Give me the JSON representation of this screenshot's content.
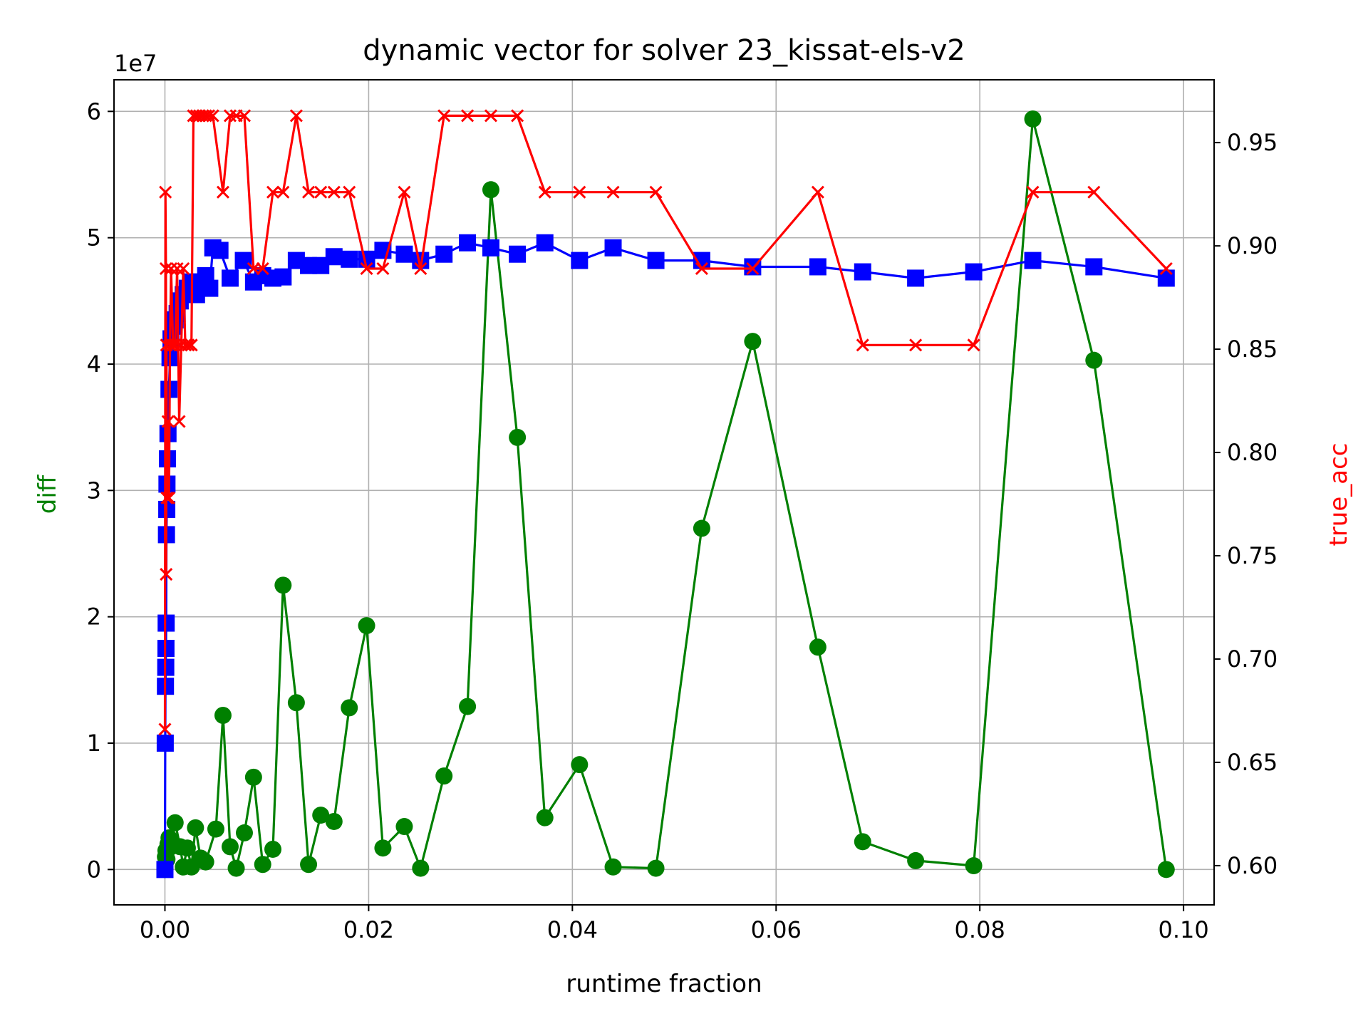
{
  "chart_data": {
    "type": "line",
    "title": "dynamic vector for solver 23_kissat-els-v2",
    "xlabel": "runtime fraction",
    "ylabel_left": "diff",
    "ylabel_right": "true_acc",
    "left_axis_offset_label": "1e7",
    "xlim": [
      -0.005,
      0.103
    ],
    "ylim_left": [
      -2800000,
      62500000
    ],
    "ylim_right": [
      0.581,
      0.9804
    ],
    "x_ticks": [
      0.0,
      0.02,
      0.04,
      0.06,
      0.08,
      0.1
    ],
    "x_tick_labels": [
      "0.00",
      "0.02",
      "0.04",
      "0.06",
      "0.08",
      "0.10"
    ],
    "y_left_ticks": [
      0,
      10000000,
      20000000,
      30000000,
      40000000,
      50000000,
      60000000
    ],
    "y_left_tick_labels": [
      "0",
      "1",
      "2",
      "3",
      "4",
      "5",
      "6"
    ],
    "y_right_ticks": [
      0.6,
      0.65,
      0.7,
      0.75,
      0.8,
      0.85,
      0.9,
      0.95
    ],
    "y_right_tick_labels": [
      "0.60",
      "0.65",
      "0.70",
      "0.75",
      "0.80",
      "0.85",
      "0.90",
      "0.95"
    ],
    "grid": true,
    "colors": {
      "diff": "#008000",
      "blue_series": "#0000ff",
      "true_acc": "#ff0000",
      "left_label": "#008000",
      "right_label": "#ff0000"
    },
    "series": [
      {
        "axis": "left",
        "marker": "circle",
        "color": "#008000",
        "points": [
          [
            0.0,
            0
          ],
          [
            5e-05,
            1000000
          ],
          [
            0.0001,
            1500000
          ],
          [
            0.0002,
            800000
          ],
          [
            0.0003,
            2000000
          ],
          [
            0.0004,
            2500000
          ],
          [
            0.0006,
            1800000
          ],
          [
            0.001,
            3700000
          ],
          [
            0.0015,
            1800000
          ],
          [
            0.0018,
            200000
          ],
          [
            0.0022,
            1700000
          ],
          [
            0.0026,
            200000
          ],
          [
            0.003,
            3300000
          ],
          [
            0.0035,
            900000
          ],
          [
            0.004,
            600000
          ],
          [
            0.005,
            3200000
          ],
          [
            0.0057,
            12200000
          ],
          [
            0.0064,
            1800000
          ],
          [
            0.007,
            100000
          ],
          [
            0.0078,
            2900000
          ],
          [
            0.0087,
            7300000
          ],
          [
            0.0096,
            400000
          ],
          [
            0.0106,
            1600000
          ],
          [
            0.0116,
            22500000
          ],
          [
            0.0129,
            13200000
          ],
          [
            0.0141,
            400000
          ],
          [
            0.0153,
            4300000
          ],
          [
            0.0166,
            3800000
          ],
          [
            0.0181,
            12800000
          ],
          [
            0.0198,
            19300000
          ],
          [
            0.0214,
            1700000
          ],
          [
            0.0235,
            3400000
          ],
          [
            0.0251,
            100000
          ],
          [
            0.0274,
            7400000
          ],
          [
            0.0297,
            12900000
          ],
          [
            0.032,
            53800000
          ],
          [
            0.0346,
            34200000
          ],
          [
            0.0373,
            4100000
          ],
          [
            0.0407,
            8300000
          ],
          [
            0.044,
            200000
          ],
          [
            0.0482,
            100000
          ],
          [
            0.0527,
            27000000
          ],
          [
            0.0577,
            41800000
          ],
          [
            0.0641,
            17600000
          ],
          [
            0.0685,
            2200000
          ],
          [
            0.0737,
            700000
          ],
          [
            0.0794,
            300000
          ],
          [
            0.0852,
            59400000
          ],
          [
            0.0912,
            40300000
          ],
          [
            0.0983,
            0
          ]
        ]
      },
      {
        "axis": "left",
        "marker": "square",
        "color": "#0000ff",
        "points": [
          [
            0.0,
            0
          ],
          [
            3e-05,
            10000000
          ],
          [
            5e-05,
            14500000
          ],
          [
            8e-05,
            16000000
          ],
          [
            0.0001,
            17500000
          ],
          [
            0.00012,
            19500000
          ],
          [
            0.00015,
            26500000
          ],
          [
            0.00018,
            28500000
          ],
          [
            0.0002,
            30500000
          ],
          [
            0.00025,
            32500000
          ],
          [
            0.0003,
            34500000
          ],
          [
            0.0004,
            38000000
          ],
          [
            0.0005,
            40500000
          ],
          [
            0.0006,
            42000000
          ],
          [
            0.0008,
            43000000
          ],
          [
            0.001,
            43500000
          ],
          [
            0.0012,
            44000000
          ],
          [
            0.0015,
            45000000
          ],
          [
            0.0018,
            45500000
          ],
          [
            0.0022,
            46000000
          ],
          [
            0.0026,
            46500000
          ],
          [
            0.0031,
            45500000
          ],
          [
            0.0035,
            46500000
          ],
          [
            0.004,
            47000000
          ],
          [
            0.0044,
            46000000
          ],
          [
            0.0047,
            49200000
          ],
          [
            0.0054,
            49000000
          ],
          [
            0.0064,
            46800000
          ],
          [
            0.0077,
            48200000
          ],
          [
            0.0087,
            46500000
          ],
          [
            0.0096,
            47000000
          ],
          [
            0.0106,
            46800000
          ],
          [
            0.0116,
            46900000
          ],
          [
            0.0129,
            48200000
          ],
          [
            0.0141,
            47800000
          ],
          [
            0.0153,
            47800000
          ],
          [
            0.0166,
            48500000
          ],
          [
            0.0181,
            48300000
          ],
          [
            0.0198,
            48300000
          ],
          [
            0.0214,
            49000000
          ],
          [
            0.0235,
            48700000
          ],
          [
            0.0251,
            48200000
          ],
          [
            0.0274,
            48700000
          ],
          [
            0.0297,
            49600000
          ],
          [
            0.032,
            49200000
          ],
          [
            0.0346,
            48700000
          ],
          [
            0.0373,
            49600000
          ],
          [
            0.0407,
            48200000
          ],
          [
            0.044,
            49200000
          ],
          [
            0.0482,
            48200000
          ],
          [
            0.0527,
            48200000
          ],
          [
            0.0577,
            47700000
          ],
          [
            0.0641,
            47700000
          ],
          [
            0.0685,
            47300000
          ],
          [
            0.0737,
            46800000
          ],
          [
            0.0794,
            47300000
          ],
          [
            0.0852,
            48200000
          ],
          [
            0.0912,
            47700000
          ],
          [
            0.0983,
            46800000
          ]
        ]
      },
      {
        "axis": "right",
        "marker": "x",
        "color": "#ff0000",
        "points": [
          [
            0.0,
            0.666
          ],
          [
            5e-05,
            0.926
          ],
          [
            0.0001,
            0.889
          ],
          [
            0.00012,
            0.741
          ],
          [
            0.00015,
            0.852
          ],
          [
            0.0002,
            0.778
          ],
          [
            0.0003,
            0.815
          ],
          [
            0.0004,
            0.778
          ],
          [
            0.0005,
            0.852
          ],
          [
            0.0006,
            0.889
          ],
          [
            0.0008,
            0.852
          ],
          [
            0.001,
            0.852
          ],
          [
            0.0012,
            0.889
          ],
          [
            0.0014,
            0.815
          ],
          [
            0.0016,
            0.852
          ],
          [
            0.0018,
            0.889
          ],
          [
            0.002,
            0.852
          ],
          [
            0.0023,
            0.852
          ],
          [
            0.0026,
            0.852
          ],
          [
            0.0028,
            0.963
          ],
          [
            0.0031,
            0.963
          ],
          [
            0.0034,
            0.963
          ],
          [
            0.0037,
            0.963
          ],
          [
            0.004,
            0.963
          ],
          [
            0.0043,
            0.963
          ],
          [
            0.0047,
            0.963
          ],
          [
            0.0057,
            0.926
          ],
          [
            0.0064,
            0.963
          ],
          [
            0.007,
            0.963
          ],
          [
            0.0078,
            0.963
          ],
          [
            0.0087,
            0.889
          ],
          [
            0.0096,
            0.889
          ],
          [
            0.0106,
            0.926
          ],
          [
            0.0116,
            0.926
          ],
          [
            0.0129,
            0.963
          ],
          [
            0.0141,
            0.926
          ],
          [
            0.0153,
            0.926
          ],
          [
            0.0166,
            0.926
          ],
          [
            0.0181,
            0.926
          ],
          [
            0.0198,
            0.889
          ],
          [
            0.0214,
            0.889
          ],
          [
            0.0235,
            0.926
          ],
          [
            0.0251,
            0.889
          ],
          [
            0.0274,
            0.963
          ],
          [
            0.0297,
            0.963
          ],
          [
            0.032,
            0.963
          ],
          [
            0.0346,
            0.963
          ],
          [
            0.0373,
            0.926
          ],
          [
            0.0407,
            0.926
          ],
          [
            0.044,
            0.926
          ],
          [
            0.0482,
            0.926
          ],
          [
            0.0527,
            0.889
          ],
          [
            0.0577,
            0.889
          ],
          [
            0.0641,
            0.926
          ],
          [
            0.0685,
            0.852
          ],
          [
            0.0737,
            0.852
          ],
          [
            0.0794,
            0.852
          ],
          [
            0.0852,
            0.926
          ],
          [
            0.0912,
            0.926
          ],
          [
            0.0983,
            0.889
          ]
        ]
      }
    ]
  }
}
